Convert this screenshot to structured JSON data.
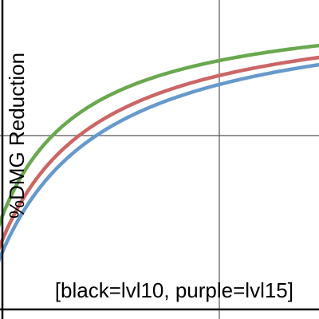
{
  "chart_data": {
    "type": "line",
    "title": "",
    "ylabel": "%DMG Reduction",
    "annotation": "[black=lvl10, purple=lvl15]",
    "grid": true,
    "series": [
      {
        "color": "#6aa84f",
        "k": 0.55
      },
      {
        "color": "#cc6666",
        "k": 0.72
      },
      {
        "color": "#6699cc",
        "k": 0.83
      }
    ]
  }
}
